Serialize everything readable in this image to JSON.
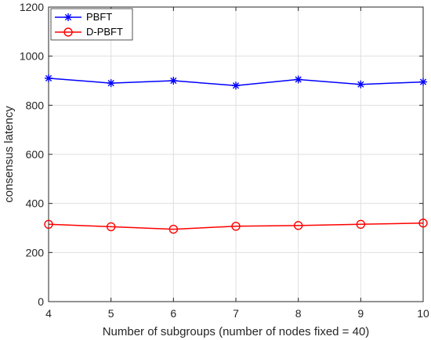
{
  "chart_data": {
    "type": "line",
    "title": "",
    "xlabel": "Number of subgroups (number of nodes fixed = 40)",
    "ylabel": "consensus latency",
    "xlim": [
      4,
      10
    ],
    "ylim": [
      0,
      1200
    ],
    "xticks": [
      "4",
      "5",
      "6",
      "7",
      "8",
      "9",
      "10"
    ],
    "yticks": [
      "0",
      "200",
      "400",
      "600",
      "800",
      "1000",
      "1200"
    ],
    "grid": true,
    "legend_position": "top-left",
    "x": [
      4,
      5,
      6,
      7,
      8,
      9,
      10
    ],
    "series": [
      {
        "name": "PBFT",
        "color": "#0000ff",
        "marker": "asterisk",
        "values": [
          910,
          890,
          900,
          880,
          905,
          885,
          895
        ]
      },
      {
        "name": "D-PBFT",
        "color": "#ff0000",
        "marker": "circle",
        "values": [
          315,
          305,
          295,
          307,
          310,
          315,
          320
        ]
      }
    ]
  }
}
